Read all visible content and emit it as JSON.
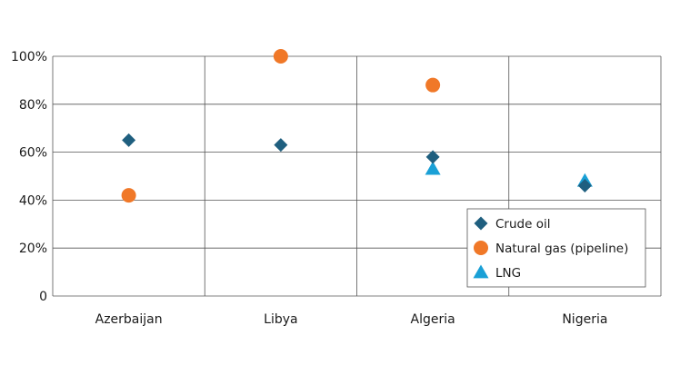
{
  "chart_data": {
    "type": "scatter",
    "categories": [
      "Azerbaijan",
      "Libya",
      "Algeria",
      "Nigeria"
    ],
    "y_ticks": [
      {
        "value": 0,
        "label": "0"
      },
      {
        "value": 20,
        "label": "20%"
      },
      {
        "value": 40,
        "label": "40%"
      },
      {
        "value": 60,
        "label": "60%"
      },
      {
        "value": 80,
        "label": "80%"
      },
      {
        "value": 100,
        "label": "100%"
      }
    ],
    "ylim": [
      0,
      100
    ],
    "grid": true,
    "legend_position": "bottom-right",
    "series": [
      {
        "name": "Crude oil",
        "marker": "diamond",
        "color": "#1f5f7f",
        "values": [
          65,
          63,
          58,
          46
        ]
      },
      {
        "name": "Natural gas (pipeline)",
        "marker": "circle",
        "color": "#f07828",
        "values": [
          42,
          100,
          88,
          null
        ]
      },
      {
        "name": "LNG",
        "marker": "triangle",
        "color": "#1aa0d6",
        "values": [
          null,
          null,
          53,
          48
        ]
      }
    ]
  }
}
